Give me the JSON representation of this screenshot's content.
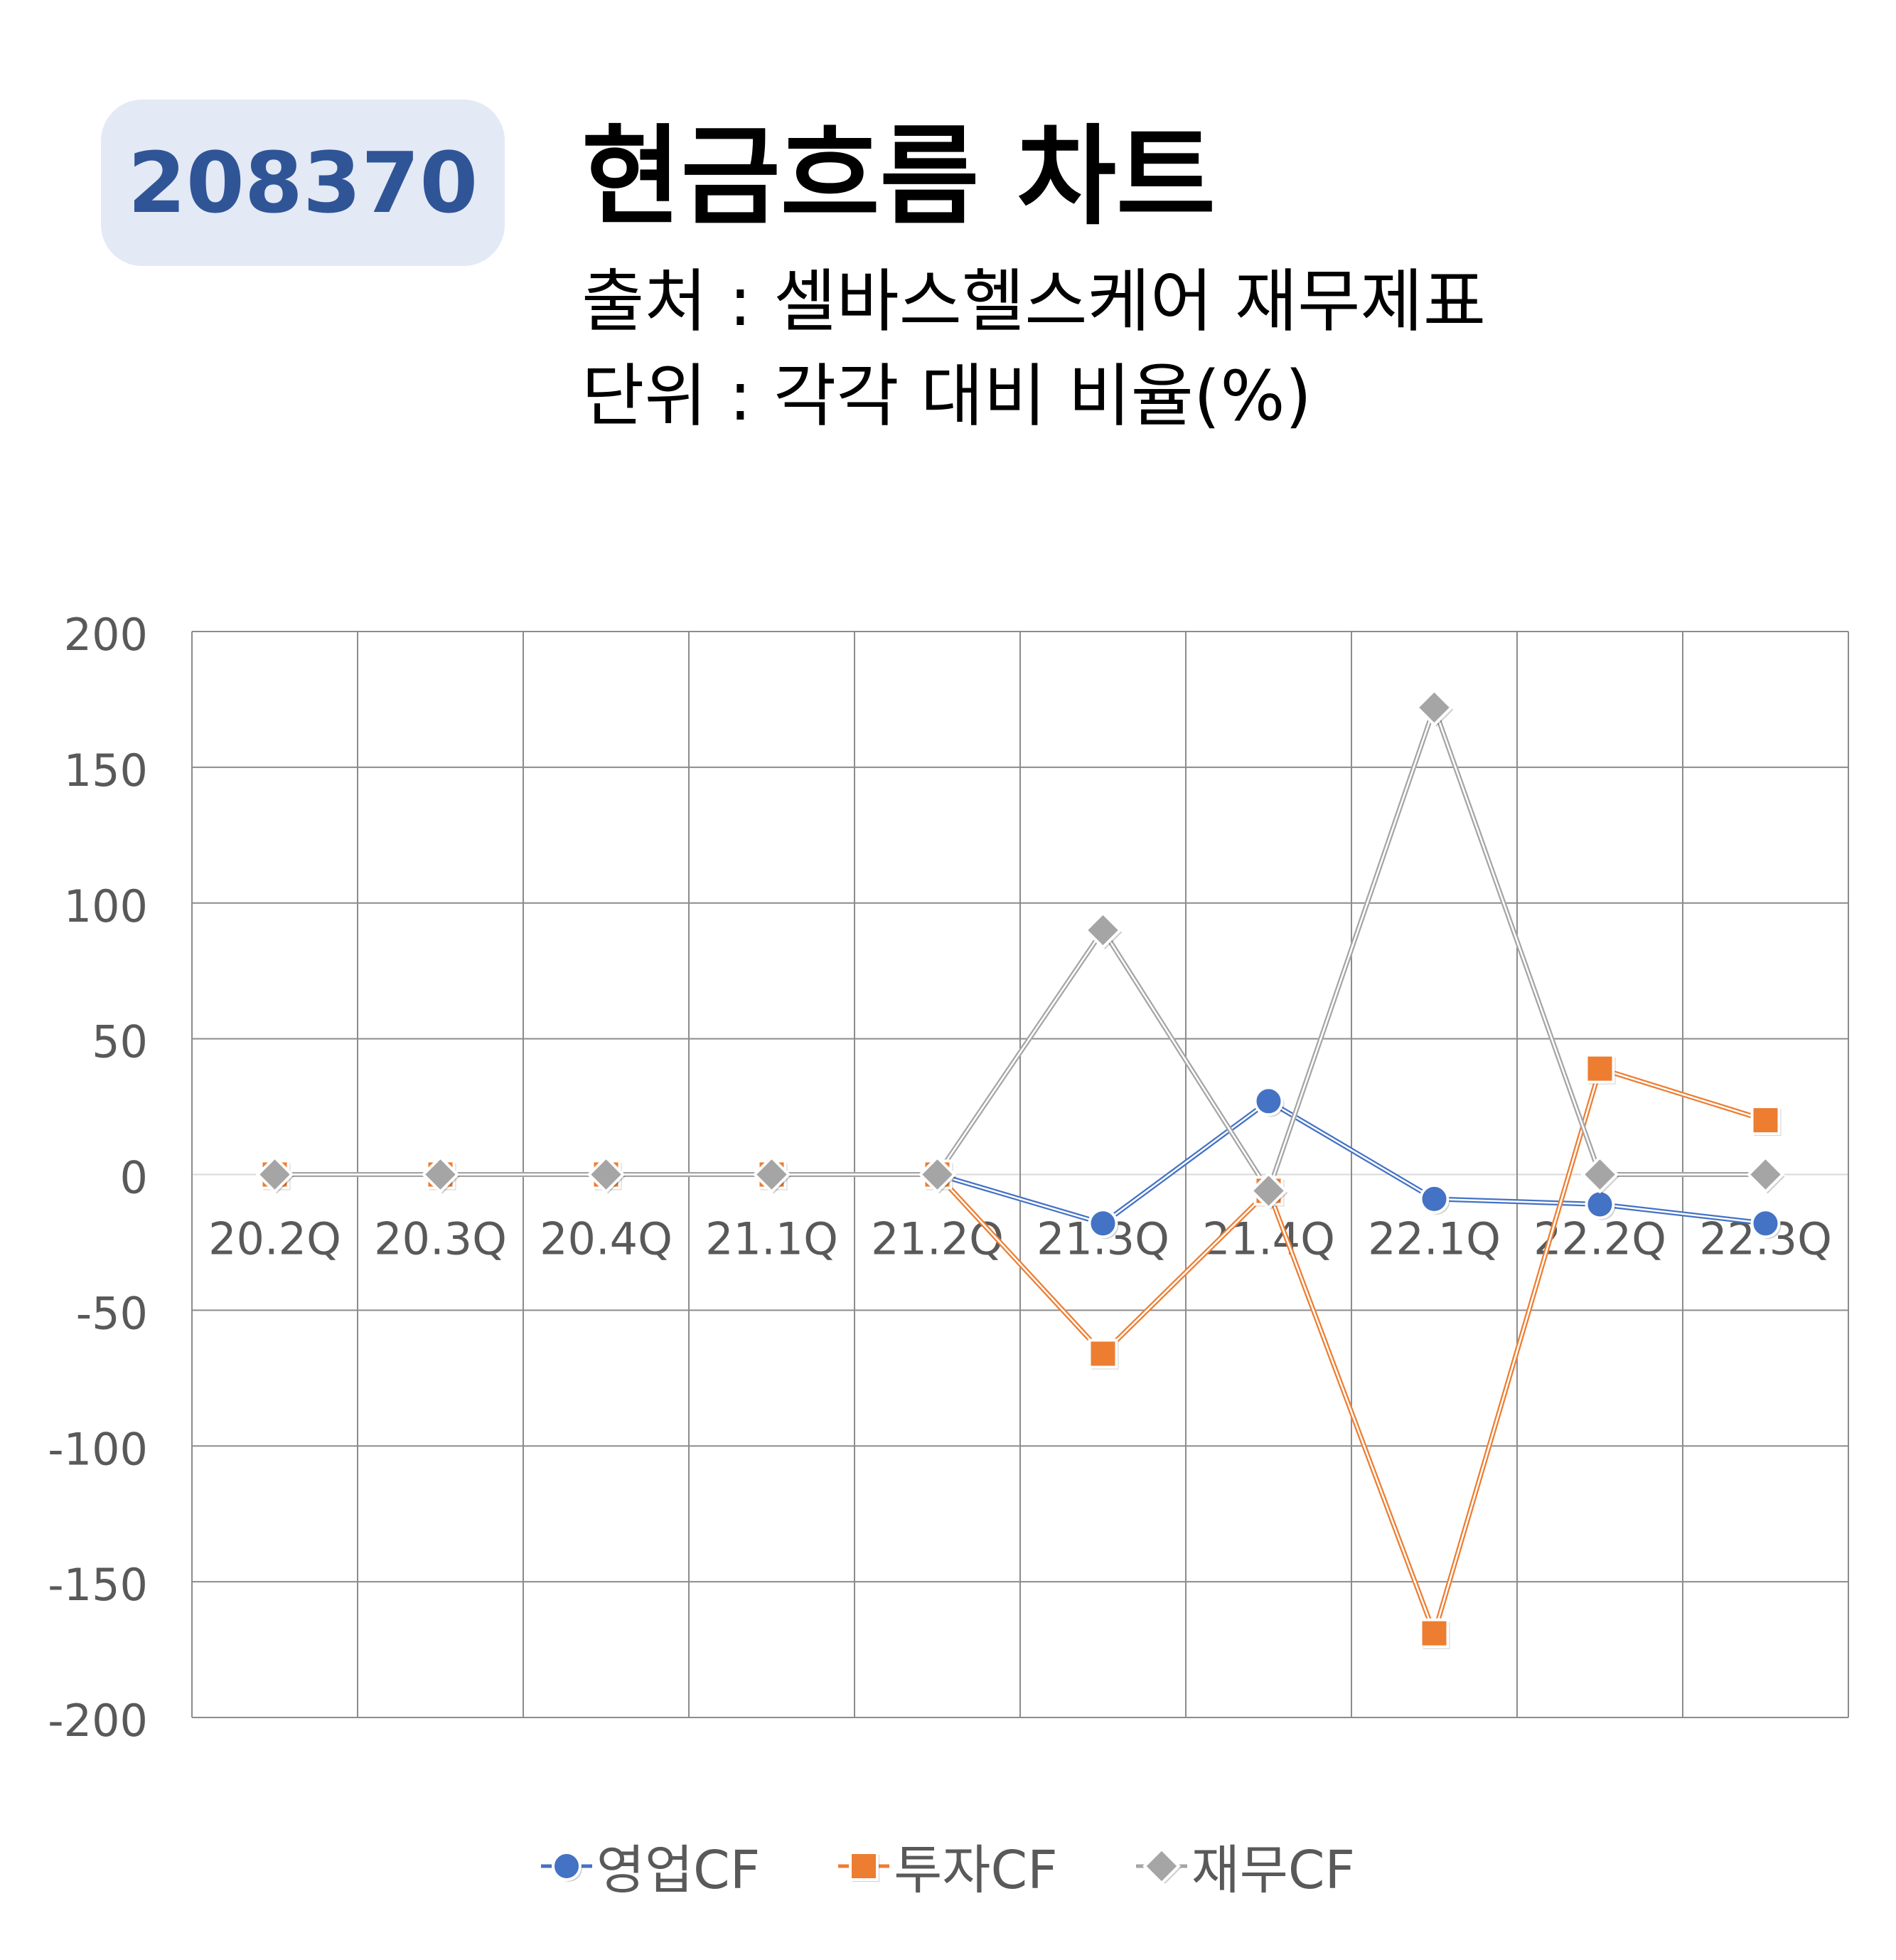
{
  "header": {
    "stock_code": "208370",
    "title": "현금흐름 차트",
    "source_line": "출처 : 셀바스헬스케어 재무제표",
    "unit_line": "단위 : 각각 대비 비율(%)"
  },
  "chart_data": {
    "type": "line",
    "categories": [
      "20.2Q",
      "20.3Q",
      "20.4Q",
      "21.1Q",
      "21.2Q",
      "21.3Q",
      "21.4Q",
      "22.1Q",
      "22.2Q",
      "22.3Q"
    ],
    "ylim": [
      -200,
      200
    ],
    "yticks": [
      "200",
      "150",
      "100",
      "50",
      "0",
      "-50",
      "-100",
      "-150",
      "-200"
    ],
    "grid": true,
    "legend_position": "bottom",
    "series": [
      {
        "name": "영업CF",
        "marker": "circle",
        "color": "#4472c4",
        "values": [
          0,
          0,
          0,
          0,
          0,
          -18,
          27,
          -9,
          -11,
          -18
        ]
      },
      {
        "name": "투자CF",
        "marker": "square",
        "color": "#ed7d31",
        "values": [
          0,
          0,
          0,
          0,
          0,
          -66,
          -6,
          -169,
          39,
          20
        ]
      },
      {
        "name": "재무CF",
        "marker": "diamond",
        "color": "#a5a5a5",
        "values": [
          0,
          0,
          0,
          0,
          0,
          90,
          -6,
          172,
          0,
          0
        ]
      }
    ]
  }
}
